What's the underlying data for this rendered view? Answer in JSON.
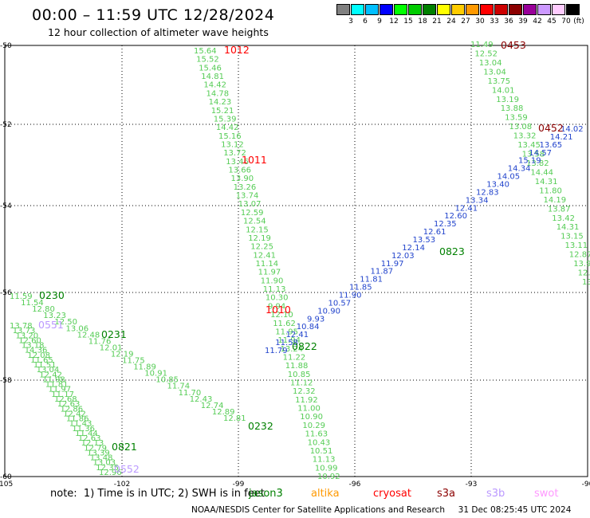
{
  "header": {
    "title": "00:00 – 11:59 UTC 12/28/2024",
    "subtitle": "12 hour collection of altimeter wave heights"
  },
  "colorbar": {
    "unit": "(ft)",
    "colors": [
      "#808080",
      "#00ffff",
      "#00bfff",
      "#0000ff",
      "#00ff00",
      "#00cc00",
      "#008000",
      "#ffff00",
      "#ffcc00",
      "#ff9900",
      "#ff0000",
      "#cc0000",
      "#8b0000",
      "#990099",
      "#cc99ff",
      "#ffccff",
      "#000000"
    ],
    "labels": [
      "3",
      "6",
      "9",
      "12",
      "15",
      "18",
      "21",
      "24",
      "27",
      "30",
      "33",
      "36",
      "39",
      "42",
      "45",
      "70"
    ]
  },
  "axes": {
    "lat_labels": [
      "-50",
      "-52",
      "-54",
      "-56",
      "-58",
      "-60"
    ],
    "lon_labels": [
      "-105",
      "-102",
      "-99",
      "-96",
      "-93",
      "-90"
    ]
  },
  "passes": [
    {
      "time": "1012",
      "color": "#ff0000",
      "values": [
        "15.64",
        "15.52",
        "15.46",
        "14.81",
        "14.42",
        "14.78",
        "14.23",
        "15.21",
        "15.39",
        "14.42",
        "15.16",
        "13.12",
        "13.72",
        "13.46",
        "13.66",
        "13.90",
        "13.26",
        "13.74",
        "13.07",
        "12.59",
        "12.54",
        "12.15",
        "12.19",
        "12.25",
        "12.41",
        "11.14",
        "11.97",
        "11.90",
        "11.13",
        "10.30",
        "9.94",
        "12.10",
        "11.62",
        "11.95",
        "11.94",
        "13.24",
        "11.22",
        "11.88",
        "10.85",
        "11.12",
        "12.32",
        "11.92",
        "11.00",
        "10.90",
        "10.29",
        "11.63",
        "10.43",
        "10.51",
        "11.13",
        "10.99",
        "10.92"
      ]
    },
    {
      "time": "1011",
      "color": "#ff0000",
      "values": []
    },
    {
      "time": "1010",
      "color": "#ff0000",
      "values": []
    },
    {
      "time": "0453",
      "color": "#8b0000",
      "values": [
        "11.49",
        "12.52",
        "13.04",
        "13.04",
        "13.75",
        "14.01",
        "13.19",
        "13.88",
        "13.59",
        "13.08",
        "13.32",
        "13.45",
        "13.58",
        "13.82",
        "14.44",
        "14.31",
        "11.80",
        "14.19",
        "13.87",
        "13.42",
        "14.31",
        "13.15",
        "13.11",
        "12.87",
        "13.9",
        "12.0",
        "13"
      ]
    },
    {
      "time": "0452",
      "color": "#8b0000",
      "values": [
        "14.02",
        "14.21",
        "13.65",
        "14.57",
        "15.19",
        "14.34",
        "14.05",
        "13.40",
        "12.83",
        "13.34",
        "12.41",
        "12.60",
        "12.35",
        "12.61",
        "13.53",
        "12.14",
        "12.03",
        "11.97",
        "11.87",
        "11.81",
        "11.85",
        "11.90",
        "10.57",
        "10.90",
        "9.93",
        "10.84",
        "12.41",
        "11.58",
        "11.79"
      ]
    },
    {
      "time": "0823",
      "color": "#008000",
      "values": []
    },
    {
      "time": "0822",
      "color": "#008000",
      "values": []
    },
    {
      "time": "0230",
      "color": "#008000",
      "values": [
        "11.59",
        "11.54",
        "12.80",
        "13.23",
        "12.50",
        "13.06",
        "12.48",
        "11.76",
        "12.01",
        "12.19",
        "11.75",
        "11.89",
        "10.91",
        "10.85",
        "11.74",
        "11.70",
        "12.43",
        "12.74",
        "12.89",
        "12.81"
      ]
    },
    {
      "time": "0231",
      "color": "#008000",
      "values": [
        "13.78",
        "13.73",
        "13.20",
        "12.60",
        "13.18",
        "14.36",
        "12.08",
        "11.65",
        "11.51",
        "13.04",
        "12.42",
        "11.98",
        "11.81",
        "11.97",
        "11.17",
        "12.68",
        "12.63",
        "12.86",
        "12.42",
        "11.86",
        "11.43",
        "11.36",
        "11.44",
        "12.63",
        "12.13",
        "12.79",
        "13.39",
        "13.48",
        "13.03",
        "12.35",
        "12.96"
      ]
    },
    {
      "time": "0232",
      "color": "#008000",
      "values": []
    },
    {
      "time": "0821",
      "color": "#008000",
      "values": []
    },
    {
      "time": "0551",
      "color": "#bb99ff",
      "values": []
    },
    {
      "time": "0552",
      "color": "#bb99ff",
      "values": []
    }
  ],
  "note": "note:  1) Time is in UTC; 2) SWH is in feet",
  "satellites": [
    {
      "name": "jason3",
      "color": "#008000"
    },
    {
      "name": "altika",
      "color": "#ff9900"
    },
    {
      "name": "cryosat",
      "color": "#ff0000"
    },
    {
      "name": "s3a",
      "color": "#8b0000"
    },
    {
      "name": "s3b",
      "color": "#bb99ff"
    },
    {
      "name": "swot",
      "color": "#ff99ff"
    }
  ],
  "footer": "NOAA/NESDIS Center for Satellite Applications and Research     31 Dec 08:25:45 UTC 2024"
}
